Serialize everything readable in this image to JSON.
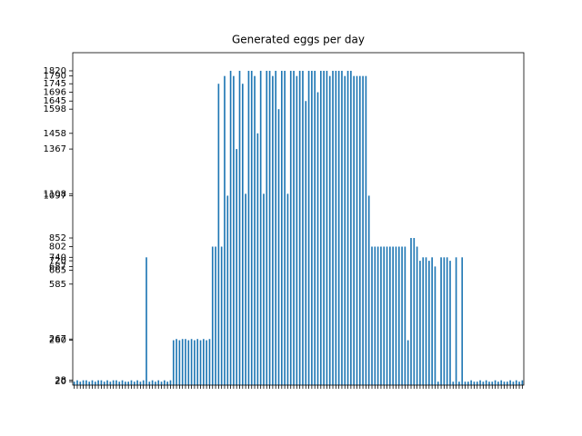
{
  "chart_data": {
    "type": "bar",
    "title": "Generated eggs per day",
    "categories": [
      null,
      null,
      null,
      null,
      null,
      null,
      null,
      null,
      null,
      null,
      null,
      null,
      null,
      null,
      null,
      null,
      null,
      null,
      null,
      null,
      null,
      null,
      null,
      null,
      null,
      null,
      null,
      null,
      null,
      null,
      null,
      null,
      null,
      null,
      null,
      null,
      null,
      null,
      null,
      null,
      null,
      null,
      null,
      null,
      null,
      null,
      null,
      null,
      null,
      null,
      null,
      null,
      null,
      null,
      null,
      null,
      null,
      null,
      null,
      null,
      null,
      null,
      null,
      null,
      null,
      null,
      null,
      null,
      null,
      null,
      null,
      null,
      null,
      null,
      null,
      null,
      null,
      null,
      null,
      null,
      null,
      null,
      null,
      null,
      null,
      null,
      null,
      null,
      null,
      null,
      null,
      null,
      null,
      null,
      null,
      null,
      null,
      null,
      null,
      null,
      null,
      null,
      null,
      null,
      null,
      null,
      null,
      null,
      null,
      null,
      null,
      null,
      null,
      null,
      null,
      null,
      null,
      null,
      null,
      null,
      null,
      null,
      null,
      null,
      null,
      null,
      null,
      null,
      null,
      null,
      null,
      null,
      null,
      null,
      null,
      null,
      null,
      null,
      null,
      null,
      null,
      null,
      null,
      null,
      null,
      null,
      null,
      null,
      null,
      null
    ],
    "values": [
      20,
      28,
      20,
      28,
      28,
      20,
      28,
      20,
      28,
      28,
      20,
      28,
      20,
      28,
      28,
      20,
      28,
      20,
      20,
      28,
      20,
      28,
      20,
      28,
      740,
      20,
      28,
      20,
      28,
      20,
      28,
      20,
      28,
      260,
      267,
      260,
      267,
      267,
      260,
      267,
      260,
      267,
      260,
      267,
      260,
      267,
      802,
      802,
      1745,
      802,
      1790,
      1097,
      1820,
      1790,
      1367,
      1820,
      1745,
      1108,
      1820,
      1820,
      1790,
      1458,
      1820,
      1108,
      1820,
      1820,
      1790,
      1820,
      1598,
      1820,
      1820,
      1108,
      1820,
      1820,
      1790,
      1820,
      1820,
      1645,
      1820,
      1820,
      1820,
      1696,
      1820,
      1820,
      1820,
      1790,
      1820,
      1820,
      1820,
      1820,
      1790,
      1820,
      1820,
      1790,
      1790,
      1790,
      1790,
      1790,
      1097,
      802,
      802,
      802,
      802,
      802,
      802,
      802,
      802,
      802,
      802,
      802,
      802,
      260,
      852,
      852,
      802,
      720,
      740,
      740,
      720,
      740,
      687,
      20,
      740,
      740,
      740,
      720,
      20,
      740,
      20,
      740,
      20,
      20,
      28,
      20,
      20,
      28,
      20,
      28,
      20,
      20,
      28,
      20,
      28,
      20,
      20,
      28,
      20,
      28,
      20,
      28
    ],
    "color": "#1f77b4",
    "ylim": [
      0,
      1925
    ],
    "yticks": [
      20,
      28,
      260,
      267,
      585,
      665,
      687,
      720,
      740,
      802,
      852,
      1097,
      1108,
      1367,
      1458,
      1598,
      1645,
      1696,
      1745,
      1790,
      1820
    ]
  }
}
